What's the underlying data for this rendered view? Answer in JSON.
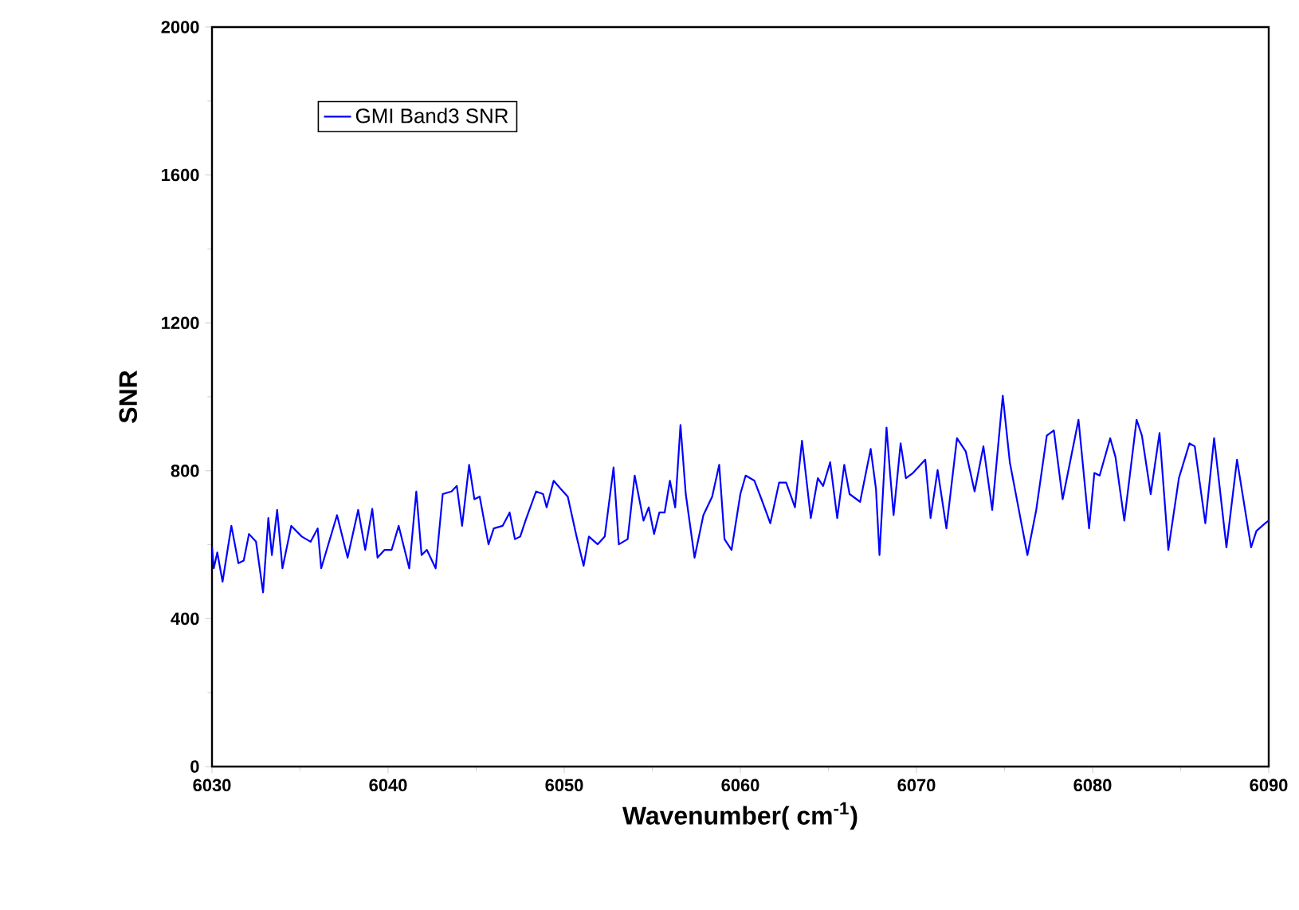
{
  "chart_data": {
    "type": "line",
    "xlabel": "Wavenumber(  cm$^{-1}$)",
    "ylabel": "SNR",
    "xlim": [
      6030,
      6090
    ],
    "ylim": [
      0,
      2000
    ],
    "xticks": [
      6030,
      6040,
      6050,
      6060,
      6070,
      6080,
      6090
    ],
    "yticks": [
      0,
      400,
      800,
      1200,
      1600,
      2000
    ],
    "grid": false,
    "legend": "top left",
    "marker": "none",
    "line_style": "solid",
    "series": [
      {
        "name": "GMI Band3 SNR",
        "color": "#0000ff",
        "x": [
          6030.0,
          6030.1,
          6030.3,
          6030.6,
          6031.1,
          6031.5,
          6031.8,
          6032.1,
          6032.5,
          6032.9,
          6033.2,
          6033.4,
          6033.7,
          6034.0,
          6034.5,
          6035.1,
          6035.6,
          6036.0,
          6036.2,
          6037.1,
          6037.7,
          6038.3,
          6038.7,
          6039.1,
          6039.4,
          6039.8,
          6040.2,
          6040.6,
          6041.2,
          6041.6,
          6041.9,
          6042.2,
          6042.7,
          6043.1,
          6043.6,
          6043.9,
          6044.2,
          6044.6,
          6044.9,
          6045.2,
          6045.7,
          6046.0,
          6046.5,
          6046.9,
          6047.2,
          6047.5,
          6047.8,
          6048.4,
          6048.8,
          6049.0,
          6049.4,
          6049.8,
          6050.2,
          6050.7,
          6051.1,
          6051.4,
          6051.9,
          6052.3,
          6052.8,
          6053.1,
          6053.6,
          6054.0,
          6054.5,
          6054.8,
          6055.1,
          6055.4,
          6055.7,
          6056.0,
          6056.3,
          6056.6,
          6056.9,
          6057.4,
          6057.9,
          6058.4,
          6058.8,
          6059.1,
          6059.5,
          6060.0,
          6060.3,
          6060.8,
          6061.2,
          6061.7,
          6062.2,
          6062.6,
          6063.1,
          6063.5,
          6064.0,
          6064.4,
          6064.7,
          6065.1,
          6065.5,
          6065.9,
          6066.2,
          6066.8,
          6067.4,
          6067.7,
          6067.9,
          6068.3,
          6068.5,
          6068.7,
          6069.1,
          6069.4,
          6069.8,
          6070.5,
          6070.8,
          6071.2,
          6071.7,
          6072.3,
          6072.8,
          6073.3,
          6073.8,
          6074.3,
          6074.9,
          6075.3,
          6075.9,
          6076.3,
          6076.8,
          6077.4,
          6077.8,
          6078.3,
          6079.2,
          6079.8,
          6080.1,
          6080.4,
          6081.0,
          6081.3,
          6081.8,
          6082.5,
          6082.8,
          6083.3,
          6083.8,
          6084.3,
          6084.9,
          6085.5,
          6085.8,
          6086.4,
          6086.9,
          6087.6,
          6088.2,
          6089.0,
          6089.3,
          6089.8,
          6090.0
        ],
        "values": [
          593,
          536,
          579,
          500,
          651,
          550,
          557,
          629,
          608,
          471,
          672,
          572,
          694,
          536,
          651,
          622,
          608,
          644,
          536,
          680,
          565,
          694,
          586,
          697,
          565,
          586,
          586,
          651,
          536,
          744,
          572,
          586,
          536,
          737,
          744,
          759,
          651,
          816,
          723,
          730,
          601,
          644,
          651,
          687,
          615,
          622,
          665,
          744,
          737,
          701,
          773,
          751,
          730,
          622,
          543,
          622,
          601,
          622,
          809,
          601,
          615,
          787,
          665,
          701,
          629,
          687,
          687,
          773,
          701,
          924,
          737,
          565,
          680,
          730,
          816,
          615,
          586,
          737,
          787,
          773,
          723,
          658,
          768,
          768,
          701,
          881,
          672,
          780,
          759,
          823,
          672,
          816,
          737,
          716,
          859,
          751,
          572,
          917,
          794,
          680,
          874,
          780,
          794,
          830,
          672,
          802,
          644,
          888,
          852,
          744,
          866,
          694,
          1003,
          823,
          672,
          572,
          694,
          895,
          909,
          723,
          938,
          644,
          794,
          787,
          888,
          837,
          665,
          938,
          895,
          737,
          902,
          586,
          780,
          874,
          866,
          658,
          888,
          593,
          830,
          593,
          637,
          658,
          665
        ]
      }
    ]
  }
}
